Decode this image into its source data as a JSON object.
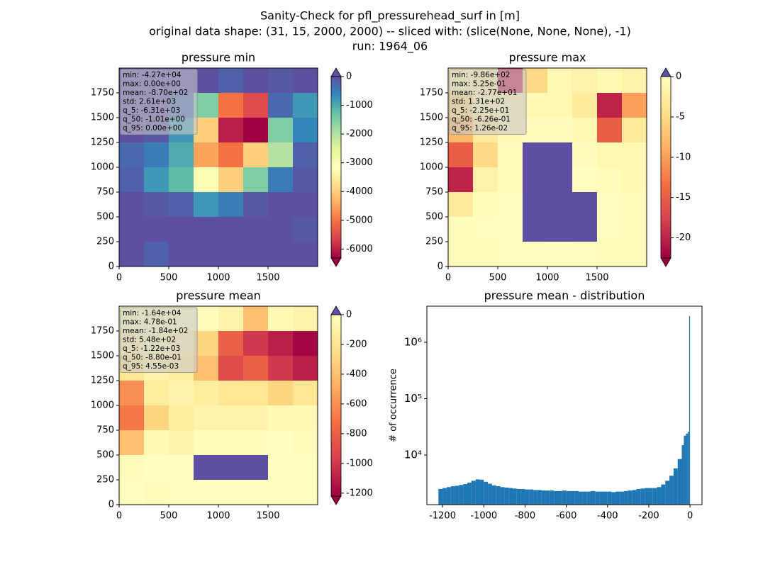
{
  "suptitle": [
    "Sanity-Check for pfl_pressurehead_surf in [m]",
    "original data shape: (31, 15, 2000, 2000) -- sliced with: (slice(None, None, None), -1)",
    "run: 1964_06"
  ],
  "chart_data": [
    {
      "type": "heatmap",
      "title": "pressure min",
      "xlim": [
        0,
        2000
      ],
      "ylim": [
        0,
        2000
      ],
      "xticks": [
        0,
        500,
        1000,
        1500
      ],
      "yticks": [
        0,
        250,
        500,
        750,
        1000,
        1250,
        1500,
        1750
      ],
      "z": [
        [
          0,
          0,
          0,
          0,
          -200,
          0,
          -100,
          0
        ],
        [
          -50,
          0,
          -300,
          -1500,
          -5000,
          -5500,
          -300,
          -800
        ],
        [
          0,
          -100,
          -800,
          -4000,
          -6000,
          -6500,
          -1500,
          -600
        ],
        [
          -300,
          -500,
          -1000,
          -4500,
          -5000,
          -4000,
          -2000,
          -200
        ],
        [
          -200,
          -800,
          -1200,
          -3000,
          -4000,
          -1500,
          -500,
          -100
        ],
        [
          0,
          -100,
          -200,
          -800,
          -500,
          -100,
          0,
          0
        ],
        [
          0,
          0,
          0,
          0,
          0,
          0,
          0,
          -100
        ],
        [
          0,
          -200,
          0,
          0,
          0,
          0,
          0,
          0
        ]
      ],
      "clim": [
        -6310,
        0
      ],
      "cmap": [
        "#9e0142",
        "#d53e4f",
        "#f46d43",
        "#fdae61",
        "#fee08b",
        "#ffffbf",
        "#e6f598",
        "#abdda4",
        "#66c2a5",
        "#3288bd",
        "#5e4fa2"
      ],
      "under_color": "#9e0142",
      "over_color": "#5e4fa2",
      "colorbar_ticks": [
        0,
        -1000,
        -2000,
        -3000,
        -4000,
        -5000,
        -6000
      ],
      "stats": [
        "min: -4.27e+04",
        "max: 0.00e+00",
        "mean: -8.70e+02",
        "std: 2.61e+03",
        "q_5: -6.31e+03",
        "q_50: -1.01e+00",
        "q_95: 0.00e+00"
      ]
    },
    {
      "type": "heatmap",
      "title": "pressure max",
      "xlim": [
        0,
        2000
      ],
      "ylim": [
        0,
        2000
      ],
      "xticks": [
        0,
        500,
        1000,
        1500
      ],
      "yticks": [
        0,
        250,
        500,
        750,
        1000,
        1250,
        1500,
        1750
      ],
      "z": [
        [
          -1,
          -2,
          -20,
          -5,
          -1,
          -2,
          -1,
          -2
        ],
        [
          -5,
          -1,
          -1,
          -1,
          -1,
          -3,
          -20,
          -10
        ],
        [
          -8,
          -3,
          -1,
          -0.5,
          -0.5,
          -1,
          -15,
          -3
        ],
        [
          -15,
          -5,
          -0.5,
          0.1,
          0.2,
          -0.5,
          -1,
          -1
        ],
        [
          -20,
          -2,
          -0.5,
          0.2,
          0.3,
          -0.2,
          -0.5,
          -1
        ],
        [
          -3,
          -0.5,
          -0.3,
          0.3,
          0.5,
          0.2,
          -0.3,
          -0.5
        ],
        [
          -0.5,
          -0.3,
          -0.2,
          0.1,
          0.2,
          0.1,
          -0.3,
          -0.5
        ],
        [
          -0.5,
          -0.5,
          -0.3,
          -0.3,
          -0.2,
          -0.3,
          -0.5,
          -0.5
        ]
      ],
      "clim": [
        -22.5,
        0.0126
      ],
      "cmap": [
        "#9e0142",
        "#d53e4f",
        "#f46d43",
        "#fdae61",
        "#fee08b",
        "#ffffbf"
      ],
      "under_color": "#9e0142",
      "over_color": "#5e4fa2",
      "colorbar_ticks": [
        0,
        -5,
        -10,
        -15,
        -20
      ],
      "stats": [
        "min: -9.86e+02",
        "max: 5.25e-01",
        "mean: -2.77e+01",
        "std: 1.31e+02",
        "q_5: -2.25e+01",
        "q_50: -6.26e-01",
        "q_95: 1.26e-02"
      ]
    },
    {
      "type": "heatmap",
      "title": "pressure mean",
      "xlim": [
        0,
        2000
      ],
      "ylim": [
        0,
        2000
      ],
      "xticks": [
        0,
        500,
        1000,
        1500
      ],
      "yticks": [
        0,
        250,
        500,
        750,
        1000,
        1250,
        1500,
        1750
      ],
      "z": [
        [
          -10,
          -5,
          -10,
          -20,
          -100,
          -400,
          -50,
          -100
        ],
        [
          -100,
          -50,
          -100,
          -300,
          -800,
          -1000,
          -1100,
          -1200
        ],
        [
          -200,
          -100,
          -150,
          -400,
          -900,
          -800,
          -1000,
          -1100
        ],
        [
          -600,
          -150,
          -100,
          -150,
          -200,
          -200,
          -300,
          -200
        ],
        [
          -700,
          -300,
          -150,
          -100,
          -100,
          -100,
          -50,
          -50
        ],
        [
          -400,
          -50,
          -100,
          -20,
          -20,
          -30,
          -10,
          -20
        ],
        [
          -20,
          -10,
          -5,
          0.1,
          0.2,
          0.1,
          -5,
          -10
        ],
        [
          -10,
          -20,
          -5,
          -5,
          -10,
          -5,
          -10,
          -10
        ]
      ],
      "clim": [
        -1220,
        0.00455
      ],
      "cmap": [
        "#9e0142",
        "#d53e4f",
        "#f46d43",
        "#fdae61",
        "#fee08b",
        "#ffffbf"
      ],
      "under_color": "#9e0142",
      "over_color": "#5e4fa2",
      "colorbar_ticks": [
        0,
        -200,
        -400,
        -600,
        -800,
        -1000,
        -1200
      ],
      "stats": [
        "min: -1.64e+04",
        "max: 4.78e-01",
        "mean: -1.84e+02",
        "std: 5.48e+02",
        "q_5: -1.22e+03",
        "q_50: -8.80e-01",
        "q_95: 4.55e-03"
      ]
    },
    {
      "type": "histogram",
      "title": "pressure mean - distribution",
      "ylabel": "# of occurrence",
      "color": "#1f77b4",
      "log_y": true,
      "xlim": [
        -1276,
        58
      ],
      "ylim": [
        1320,
        4370000
      ],
      "xticks": [
        -1200,
        -1000,
        -800,
        -600,
        -400,
        -200,
        0
      ],
      "yticks": [
        {
          "value": 10000,
          "label": "10⁴"
        },
        {
          "value": 100000,
          "label": "10⁵"
        },
        {
          "value": 1000000,
          "label": "10⁶"
        }
      ],
      "bins": [
        -1220,
        -1200,
        -1180,
        -1160,
        -1140,
        -1120,
        -1100,
        -1080,
        -1060,
        -1040,
        -1020,
        -1000,
        -980,
        -960,
        -940,
        -920,
        -900,
        -880,
        -860,
        -840,
        -820,
        -800,
        -780,
        -760,
        -740,
        -720,
        -700,
        -680,
        -660,
        -640,
        -620,
        -600,
        -580,
        -560,
        -540,
        -520,
        -500,
        -480,
        -460,
        -440,
        -420,
        -400,
        -380,
        -360,
        -340,
        -320,
        -300,
        -280,
        -260,
        -240,
        -220,
        -200,
        -180,
        -160,
        -140,
        -120,
        -100,
        -80,
        -60,
        -40,
        -30,
        -20,
        -10,
        -4,
        0
      ],
      "counts": [
        2500,
        2600,
        2700,
        2800,
        2850,
        2950,
        3050,
        3250,
        3500,
        3700,
        3650,
        3350,
        3100,
        2900,
        2800,
        2700,
        2650,
        2600,
        2550,
        2500,
        2500,
        2450,
        2450,
        2400,
        2400,
        2350,
        2350,
        2350,
        2300,
        2300,
        2350,
        2300,
        2300,
        2300,
        2250,
        2250,
        2250,
        2300,
        2250,
        2250,
        2250,
        2250,
        2200,
        2250,
        2250,
        2300,
        2350,
        2400,
        2500,
        2550,
        2600,
        2600,
        2600,
        2700,
        3000,
        3500,
        4300,
        5800,
        8500,
        15000,
        22000,
        24000,
        26000,
        2900000
      ]
    }
  ]
}
